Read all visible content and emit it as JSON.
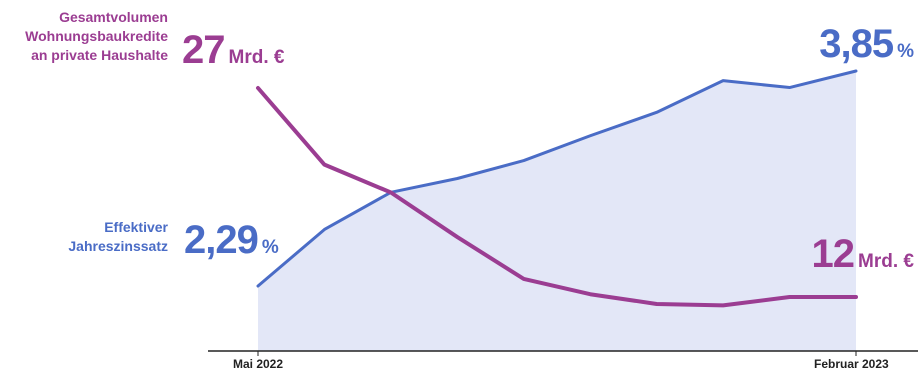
{
  "chart_data": {
    "type": "line",
    "x_labels": [
      "Mai 2022",
      "Februar 2023"
    ],
    "series": [
      {
        "name": "Gesamtvolumen Wohnungsbaukredite an private Haushalte",
        "unit": "Mrd. €",
        "color": "#9b3d92",
        "values": [
          27,
          21.5,
          19.5,
          16.3,
          13.3,
          12.2,
          11.5,
          11.4,
          12.0,
          12
        ],
        "start_label": "27",
        "end_label": "12"
      },
      {
        "name": "Effektiver Jahreszinssatz",
        "unit": "%",
        "color": "#4a6cc6",
        "fill": "#e3e7f7",
        "values": [
          2.29,
          2.7,
          2.97,
          3.07,
          3.2,
          3.38,
          3.55,
          3.78,
          3.73,
          3.85
        ],
        "start_label": "2,29",
        "end_label": "3,85"
      }
    ],
    "grid": false,
    "legend": "none"
  },
  "labels": {
    "purple_title": [
      "Gesamtvolumen",
      "Wohnungsbaukredite",
      "an private Haushalte"
    ],
    "blue_title": [
      "Effektiver",
      "Jahreszinssatz"
    ],
    "purple_start_num": "27",
    "purple_start_unit": "Mrd. €",
    "purple_end_num": "12",
    "purple_end_unit": "Mrd. €",
    "blue_start_num": "2,29",
    "blue_start_unit": "%",
    "blue_end_num": "3,85",
    "blue_end_unit": "%",
    "x_start": "Mai 2022",
    "x_end": "Februar 2023"
  }
}
